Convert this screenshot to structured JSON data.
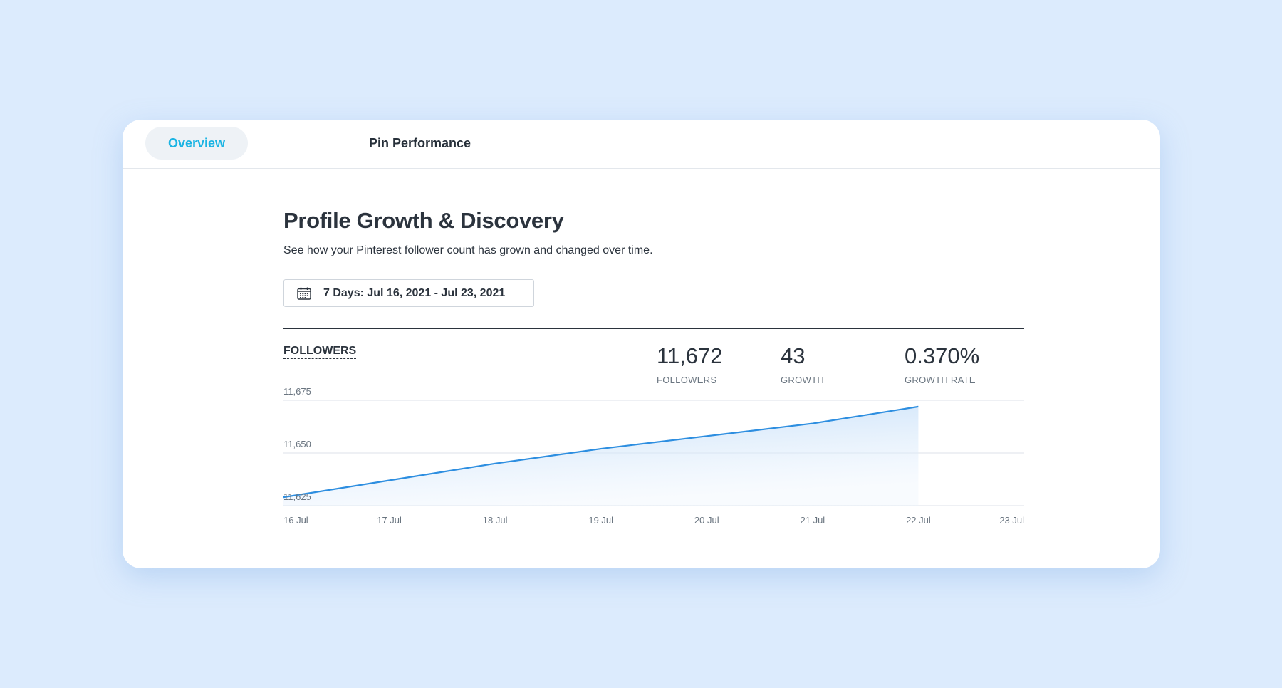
{
  "tabs": [
    {
      "label": "Overview",
      "active": true
    },
    {
      "label": "Pin Performance",
      "active": false
    }
  ],
  "header": {
    "title": "Profile Growth & Discovery",
    "subtitle": "See how your Pinterest follower count has grown and changed over time."
  },
  "date_range": {
    "icon": "calendar-icon",
    "label": "7 Days: Jul 16, 2021 - Jul 23, 2021"
  },
  "section": {
    "label": "FOLLOWERS"
  },
  "stats": [
    {
      "value": "11,672",
      "label": "FOLLOWERS"
    },
    {
      "value": "43",
      "label": "GROWTH"
    },
    {
      "value": "0.370%",
      "label": "GROWTH RATE"
    }
  ],
  "colors": {
    "accent": "#1bb4e3",
    "line": "#2d8ee0",
    "background": "#dcebfd"
  },
  "chart_data": {
    "type": "area",
    "x": [
      "16 Jul",
      "17 Jul",
      "18 Jul",
      "19 Jul",
      "20 Jul",
      "21 Jul",
      "22 Jul",
      "23 Jul"
    ],
    "series": [
      {
        "values": [
          11629,
          11637,
          11645,
          11652,
          11658,
          11664,
          11672,
          null
        ]
      }
    ],
    "y_ticks": [
      11675,
      11650,
      11625
    ],
    "y_tick_labels": [
      "11,675",
      "11,650",
      "11,625"
    ],
    "ylim": [
      11625,
      11675
    ],
    "grid": true,
    "legend": "none"
  }
}
